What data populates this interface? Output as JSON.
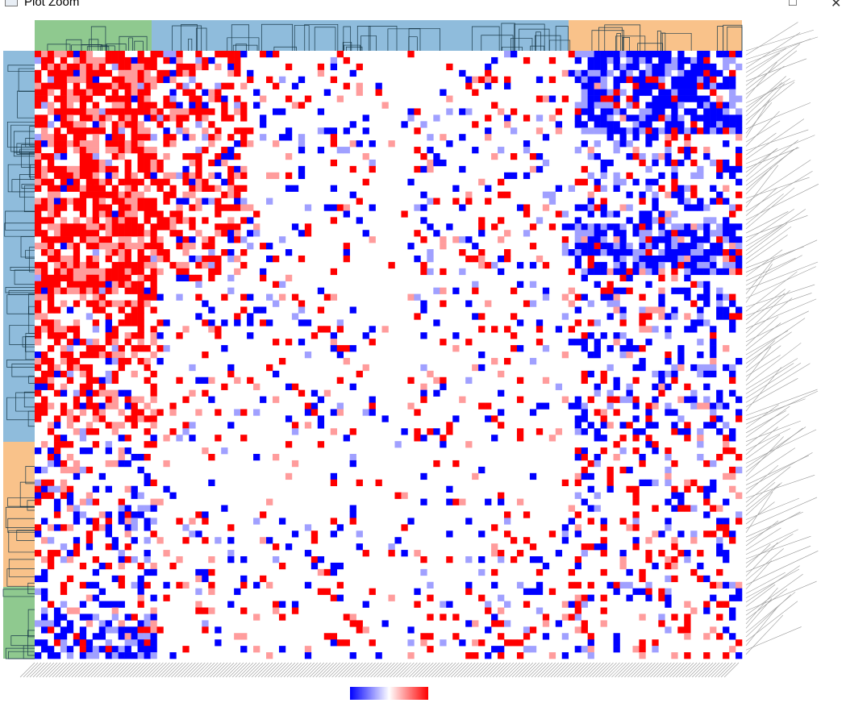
{
  "window": {
    "title": "Plot Zoom"
  }
}
